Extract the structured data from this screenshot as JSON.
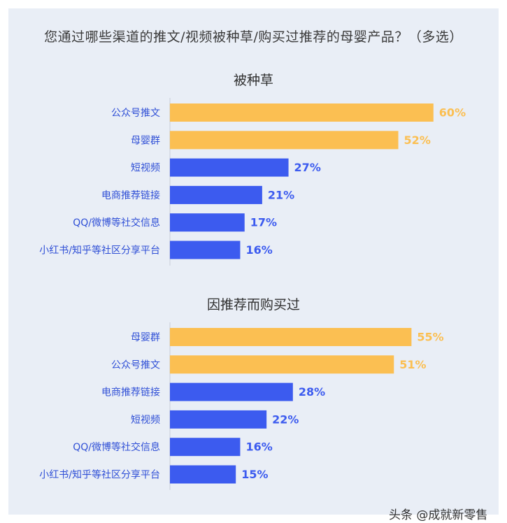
{
  "page": {
    "title": "您通过哪些渠道的推文/视频被种草/购买过推荐的母婴产品？（多选）",
    "watermark": "头条 @成就新零售"
  },
  "colors": {
    "highlight": "#fbbf52",
    "normal": "#3c5bef",
    "label_text": "#2f4fd6",
    "background": "#e9eef6"
  },
  "chart_data": [
    {
      "type": "bar",
      "orientation": "horizontal",
      "title": "被种草",
      "categories": [
        "公众号推文",
        "母婴群",
        "短视频",
        "电商推荐链接",
        "QQ/微博等社交信息",
        "小红书/知乎等社区分享平台"
      ],
      "values": [
        60,
        52,
        27,
        21,
        17,
        16
      ],
      "value_labels": [
        "60%",
        "52%",
        "27%",
        "21%",
        "17%",
        "16%"
      ],
      "highlighted": [
        true,
        true,
        false,
        false,
        false,
        false
      ],
      "unit": "%",
      "xlim": [
        0,
        70
      ],
      "grid": false
    },
    {
      "type": "bar",
      "orientation": "horizontal",
      "title": "因推荐而购买过",
      "categories": [
        "母婴群",
        "公众号推文",
        "电商推荐链接",
        "短视频",
        "QQ/微博等社交信息",
        "小红书/知乎等社区分享平台"
      ],
      "values": [
        55,
        51,
        28,
        22,
        16,
        15
      ],
      "value_labels": [
        "55%",
        "51%",
        "28%",
        "22%",
        "16%",
        "15%"
      ],
      "highlighted": [
        true,
        true,
        false,
        false,
        false,
        false
      ],
      "unit": "%",
      "xlim": [
        0,
        70
      ],
      "grid": false
    }
  ]
}
